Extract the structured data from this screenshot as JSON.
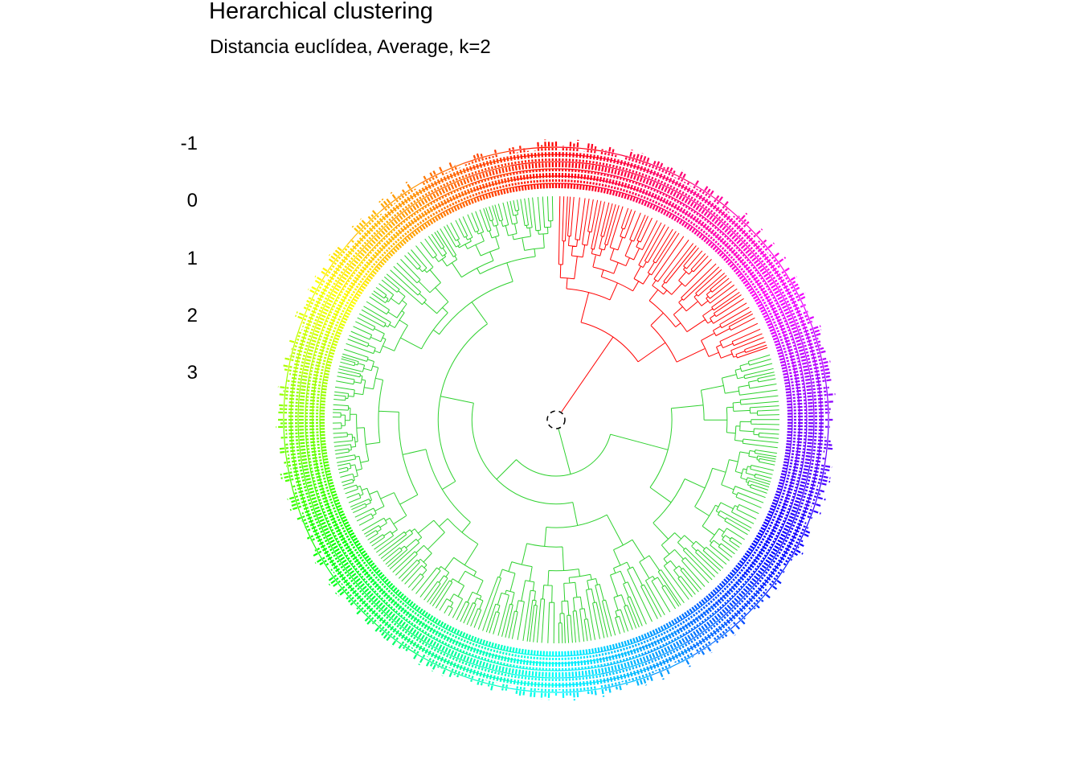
{
  "chart_data": {
    "type": "circular-dendrogram",
    "title": "Herarchical clustering",
    "subtitle": "Distancia euclídea, Average, k=2",
    "y_ticks": [
      "-1",
      "0",
      "1",
      "2",
      "3"
    ],
    "k": 2,
    "clusters": [
      {
        "id": 1,
        "color": "#ff0000",
        "angle_range_deg": [
          0,
          72
        ]
      },
      {
        "id": 2,
        "color": "#2fd12f",
        "angle_range_deg": [
          72,
          360
        ]
      }
    ],
    "leaf_label_palette": "rainbow",
    "center_marker": "dashed-circle"
  }
}
